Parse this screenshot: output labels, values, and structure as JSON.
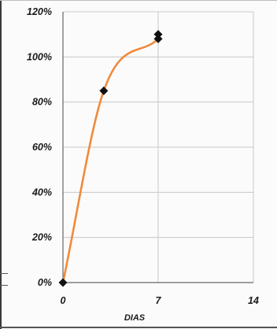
{
  "chart_data": {
    "type": "scatter",
    "title": "",
    "xlabel": "DIAS",
    "ylabel": "",
    "xlim": [
      0,
      14
    ],
    "ylim": [
      0,
      1.2
    ],
    "x_ticks": [
      0,
      7,
      14
    ],
    "y_ticks": [
      0,
      0.2,
      0.4,
      0.6,
      0.8,
      1.0,
      1.2
    ],
    "x_tick_labels": [
      "0",
      "7",
      "14"
    ],
    "y_tick_labels": [
      "0%",
      "20%",
      "40%",
      "60%",
      "80%",
      "100%",
      "120%"
    ],
    "grid": true,
    "legend": "none",
    "series": [
      {
        "marker": "diamond",
        "marker_color": "#111111",
        "points": [
          {
            "x": 0,
            "y": 0.0
          },
          {
            "x": 3,
            "y": 0.85
          },
          {
            "x": 7,
            "y": 1.08
          },
          {
            "x": 7,
            "y": 1.1
          }
        ]
      }
    ],
    "trendline": {
      "color": "#f08a3c",
      "points": [
        {
          "x": 0,
          "y": 0.0
        },
        {
          "x": 3,
          "y": 0.85
        },
        {
          "x": 7,
          "y": 1.08
        }
      ]
    }
  },
  "colors": {
    "gridline": "#c8c8c8",
    "axis": "#666666",
    "curve": "#f08a3c",
    "marker": "#111111"
  }
}
